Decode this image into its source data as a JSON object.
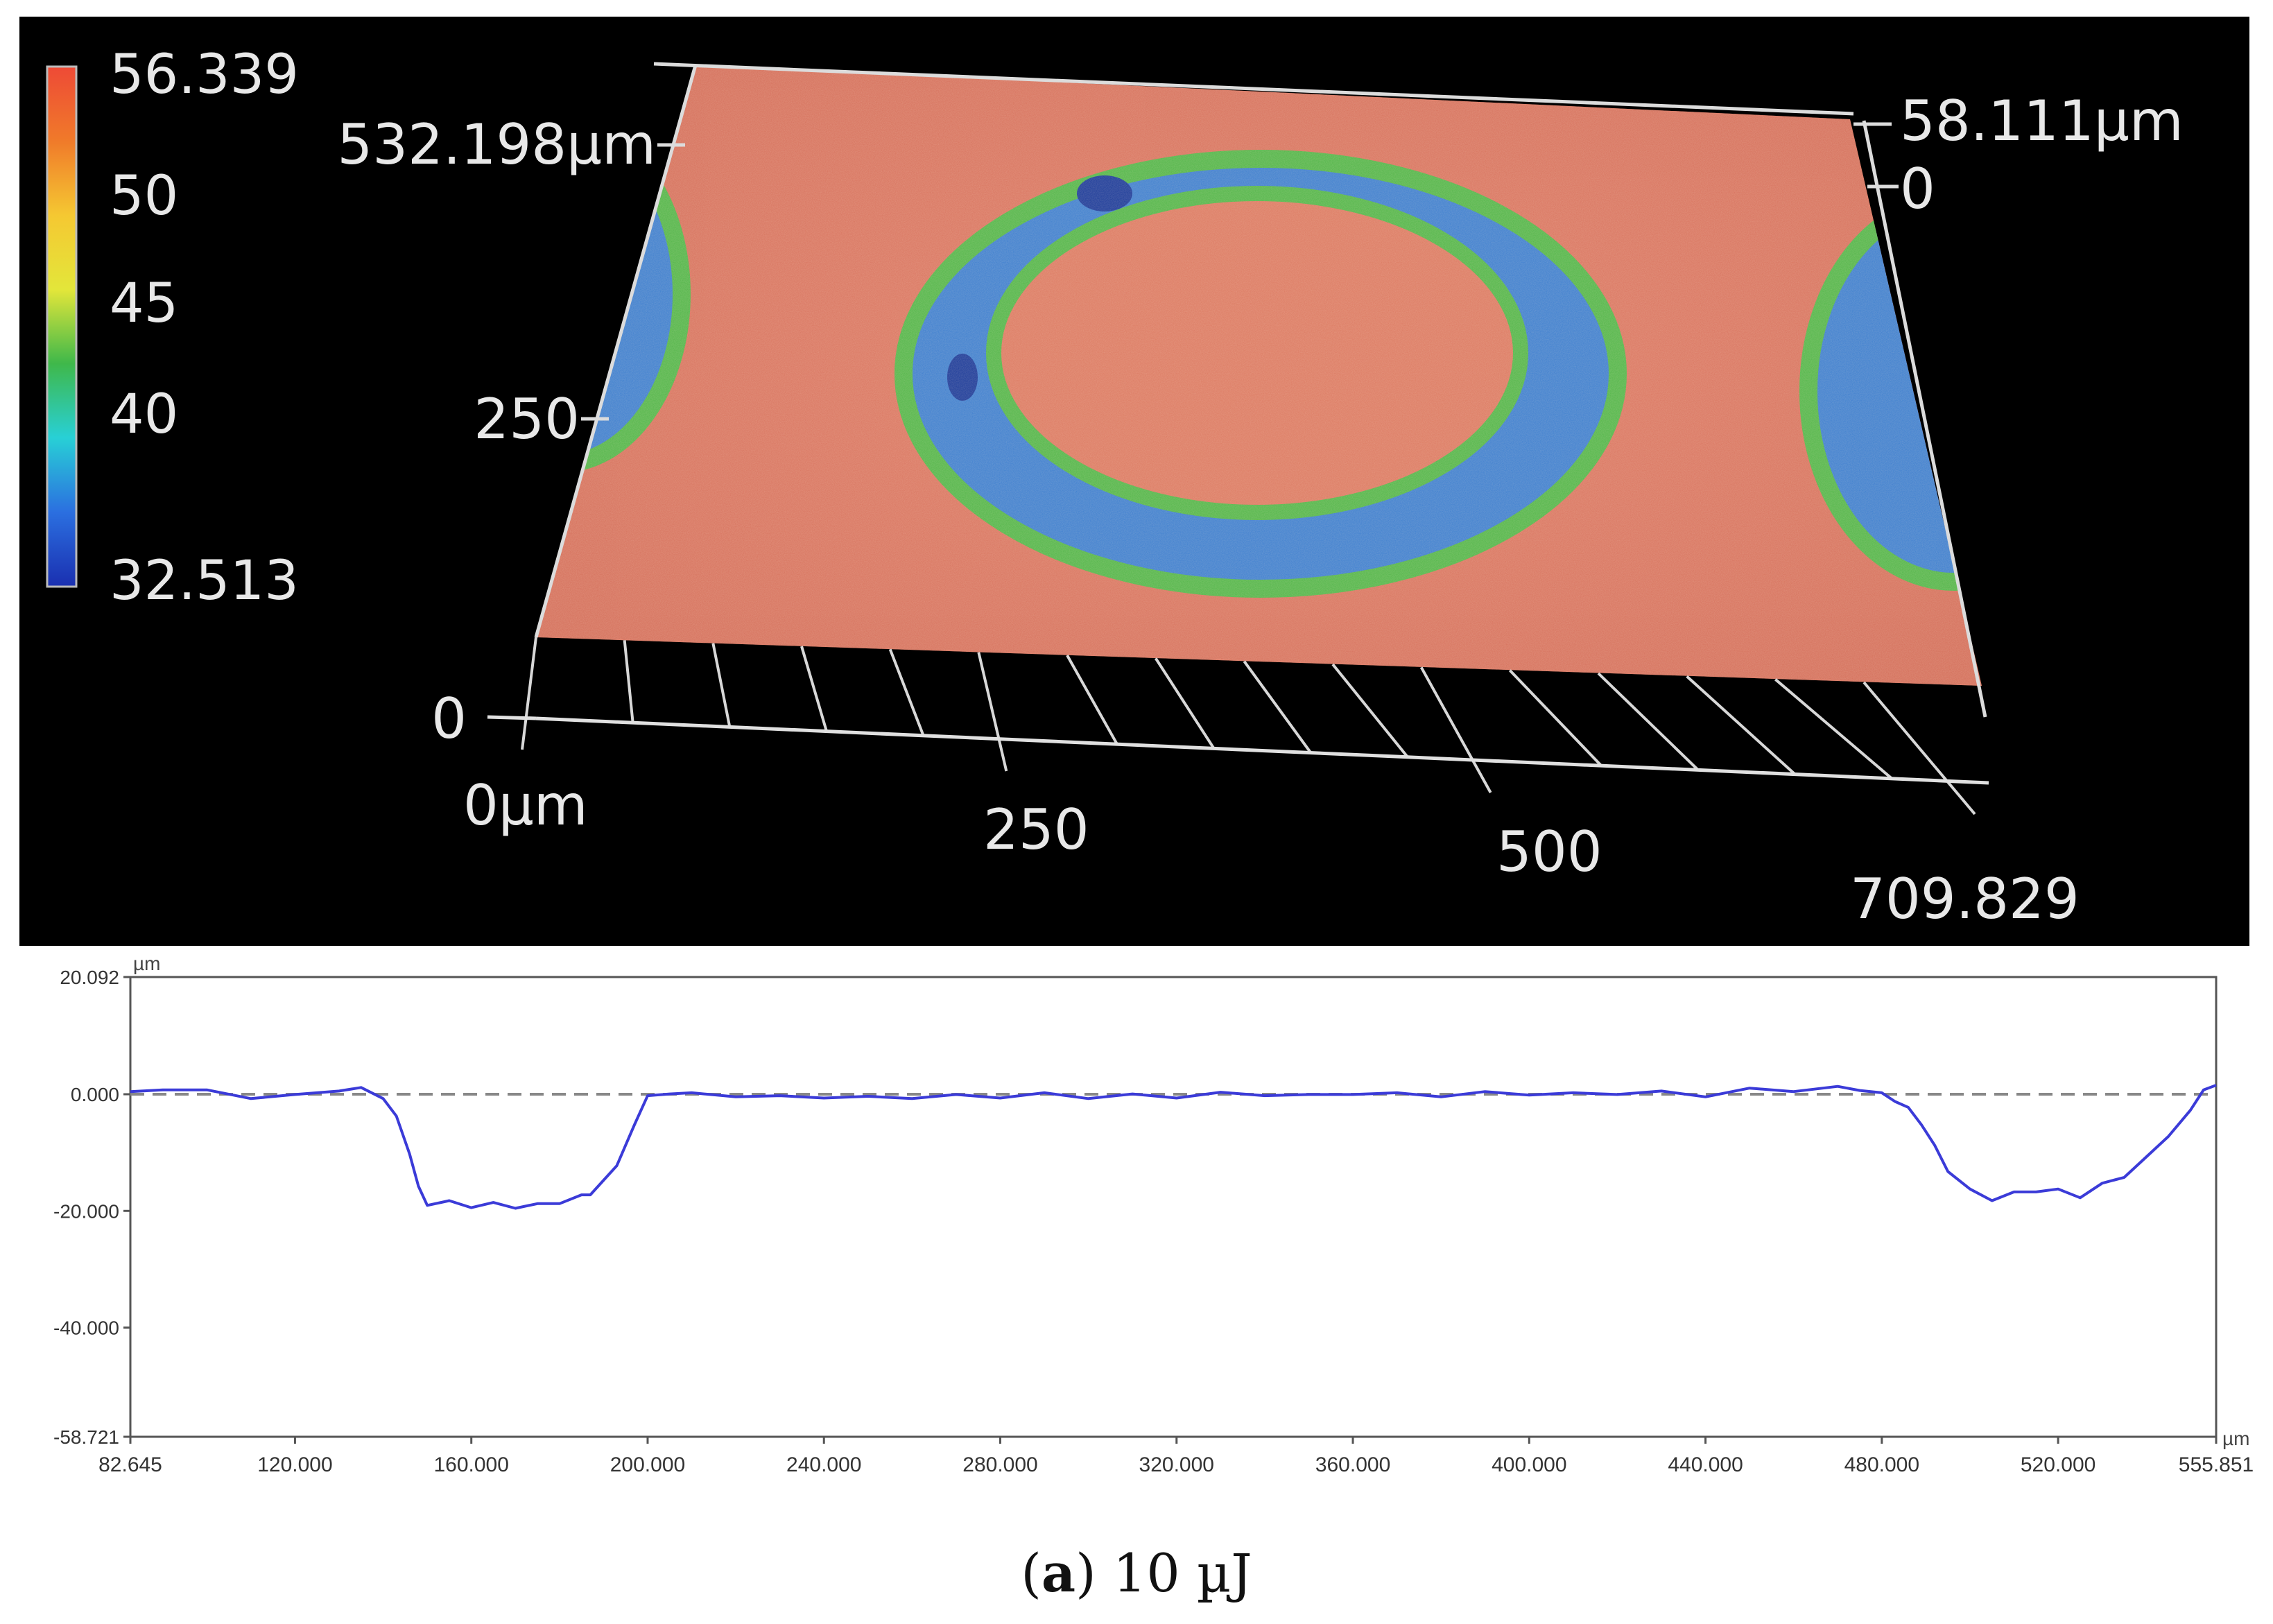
{
  "surface_3d": {
    "colorbar": {
      "max": "56.339",
      "tick_50": "50",
      "tick_45": "45",
      "tick_40": "40",
      "min": "32.513",
      "stops": [
        "#ee4a36",
        "#f07a2a",
        "#f5c832",
        "#e3e63a",
        "#3fb84a",
        "#28d0d6",
        "#2b6fe0",
        "#1a2fb0"
      ]
    },
    "y_axis": {
      "max_label": "532.198µm",
      "mid_label": "250"
    },
    "z_axis": {
      "max_label": "58.111µm",
      "zero_label": "0"
    },
    "x_axis": {
      "labels": [
        "0µm",
        "250",
        "500",
        "709.829"
      ]
    },
    "height_zero_label": "0",
    "colors": {
      "surface": "#d9725f",
      "crater": "#3d7fd0",
      "rim": "#52b649",
      "deep": "#1a3a9a"
    }
  },
  "chart_data": {
    "type": "line",
    "title": "",
    "xlabel": "µm",
    "ylabel": "µm",
    "xlim": [
      82.645,
      555.851
    ],
    "ylim": [
      -58.721,
      20.092
    ],
    "x_ticks": [
      "82.645",
      "120.000",
      "160.000",
      "200.000",
      "240.000",
      "280.000",
      "320.000",
      "360.000",
      "400.000",
      "440.000",
      "480.000",
      "520.000",
      "555.851"
    ],
    "x_tick_values": [
      82.645,
      120,
      160,
      200,
      240,
      280,
      320,
      360,
      400,
      440,
      480,
      520,
      555.851
    ],
    "y_ticks": [
      "20.092",
      "0.000",
      "-20.000",
      "-40.000",
      "-58.721"
    ],
    "y_tick_values": [
      20.092,
      0,
      -20,
      -40,
      -58.721
    ],
    "reference_line": 0,
    "line_color": "#3b3bd8",
    "series": [
      {
        "x": [
          82.645,
          90,
          100,
          110,
          120,
          130,
          135,
          140,
          143,
          146,
          148,
          150,
          155,
          160,
          165,
          170,
          175,
          180,
          185,
          187,
          190,
          193,
          195,
          197,
          200,
          205,
          210,
          220,
          230,
          240,
          250,
          260,
          270,
          280,
          290,
          300,
          310,
          320,
          330,
          340,
          350,
          360,
          370,
          380,
          390,
          400,
          410,
          420,
          430,
          440,
          450,
          460,
          470,
          475,
          480,
          483,
          486,
          489,
          492,
          495,
          500,
          505,
          510,
          515,
          520,
          525,
          530,
          535,
          540,
          545,
          550,
          553,
          555.851
        ],
        "y": [
          0.2,
          1.0,
          0.5,
          -0.5,
          -0.3,
          0.8,
          0.9,
          -0.5,
          -4.0,
          -10.0,
          -16.0,
          -18.8,
          -18.5,
          -19.2,
          -18.8,
          -19.3,
          -19.0,
          -18.5,
          -17.5,
          -17.0,
          -15.0,
          -12.0,
          -9.0,
          -5.0,
          -0.5,
          0.3,
          0.0,
          -0.2,
          -0.5,
          -0.4,
          -0.6,
          -0.5,
          -0.3,
          -0.4,
          0.0,
          -0.5,
          -0.2,
          -0.4,
          0.1,
          0.0,
          -0.3,
          0.2,
          0.0,
          -0.2,
          0.2,
          0.1,
          0.0,
          0.2,
          0.3,
          -0.2,
          0.8,
          0.7,
          1.1,
          0.9,
          0.0,
          -1.0,
          -2.5,
          -5.0,
          -9.0,
          -13.0,
          -16.5,
          -18.0,
          -17.0,
          -16.5,
          -16.5,
          -17.5,
          -15.5,
          -14.0,
          -11.0,
          -7.0,
          -3.0,
          1.0,
          1.3
        ]
      }
    ]
  },
  "caption": {
    "label": "a",
    "text": " 10 µJ"
  }
}
